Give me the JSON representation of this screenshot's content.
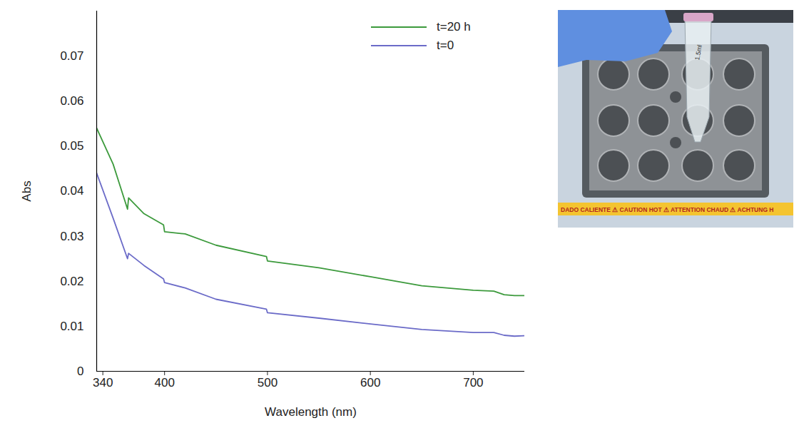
{
  "chart_data": {
    "type": "line",
    "x_label": "Wavelength (nm)",
    "y_label": "Abs",
    "xlim": [
      334,
      750
    ],
    "xticks": [
      340,
      400,
      500,
      600,
      700
    ],
    "ylim": [
      0,
      0.08
    ],
    "yticks": [
      0,
      0.01,
      0.02,
      0.03,
      0.04,
      0.05,
      0.06,
      0.07
    ],
    "grid": false,
    "legend": "top-right",
    "series": [
      {
        "name": "t=20 h",
        "color": "#3c9a3c",
        "x": [
          334,
          350,
          364,
          365,
          380,
          399,
          400,
          420,
          450,
          499,
          500,
          550,
          600,
          650,
          700,
          720,
          730,
          740,
          750
        ],
        "values": [
          0.054,
          0.046,
          0.036,
          0.0385,
          0.035,
          0.0325,
          0.031,
          0.0305,
          0.028,
          0.0255,
          0.0245,
          0.023,
          0.021,
          0.019,
          0.018,
          0.0178,
          0.017,
          0.0168,
          0.0168
        ]
      },
      {
        "name": "t=0",
        "color": "#6b6bc8",
        "x": [
          334,
          350,
          364,
          365,
          380,
          399,
          400,
          420,
          450,
          499,
          500,
          550,
          600,
          650,
          700,
          720,
          730,
          740,
          750
        ],
        "values": [
          0.044,
          0.034,
          0.025,
          0.0262,
          0.0235,
          0.0205,
          0.0197,
          0.0185,
          0.016,
          0.0138,
          0.013,
          0.0118,
          0.0105,
          0.0093,
          0.0086,
          0.0086,
          0.008,
          0.0078,
          0.0079
        ]
      }
    ]
  },
  "photo": {
    "tube_label": "1.5ml",
    "warning_strip": "DADO CALIENTE ⚠ CAUTION HOT ⚠ ATTENTION CHAUD ⚠ ACHTUNG H"
  }
}
